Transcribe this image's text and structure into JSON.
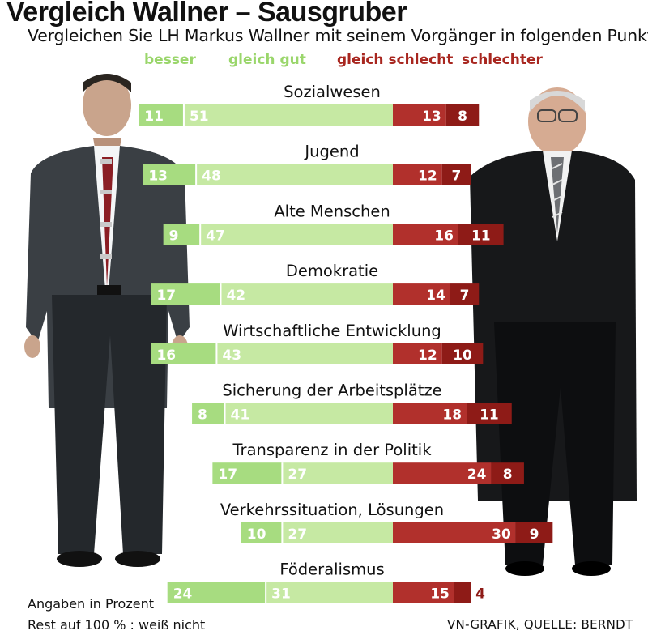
{
  "header": {
    "title": "Vergleich Wallner – Sausgruber",
    "subtitle": "Vergleichen Sie LH Markus Wallner mit seinem Vorgänger  in folgenden Punkten:"
  },
  "colors": {
    "besser": "#a7dc80",
    "gleich_gut": "#c6e9a3",
    "gleich_schlecht": "#b1302c",
    "schlechter": "#8e1b17",
    "legend_green": "#9ad66b",
    "legend_red": "#a8261f"
  },
  "chart_data": {
    "type": "bar",
    "stacked": "diverging",
    "series": [
      {
        "name": "besser",
        "values": [
          11,
          13,
          9,
          17,
          16,
          8,
          17,
          10,
          24
        ]
      },
      {
        "name": "gleich gut",
        "values": [
          51,
          48,
          47,
          42,
          43,
          41,
          27,
          27,
          31
        ]
      },
      {
        "name": "gleich schlecht",
        "values": [
          13,
          12,
          16,
          14,
          12,
          18,
          24,
          30,
          15
        ]
      },
      {
        "name": "schlechter",
        "values": [
          8,
          7,
          11,
          7,
          10,
          11,
          8,
          9,
          4
        ]
      }
    ],
    "categories": [
      "Sozialwesen",
      "Jugend",
      "Alte Menschen",
      "Demokratie",
      "Wirtschaftliche Entwicklung",
      "Sicherung der Arbeitsplätze",
      "Transparenz in der Politik",
      "Verkehrssituation, Lösungen",
      "Föderalismus"
    ],
    "legend": [
      "besser",
      "gleich gut",
      "gleich schlecht",
      "schlechter"
    ],
    "legend_position": "top",
    "unit": "%",
    "grid": false
  },
  "footer": {
    "note1": "Angaben in Prozent",
    "note2": "Rest auf 100 % : weiß nicht",
    "source": "VN-GRAFIK, QUELLE: BERNDT"
  }
}
